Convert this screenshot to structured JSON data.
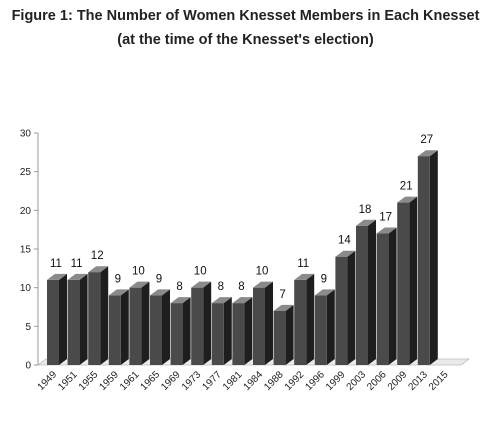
{
  "chart_data": {
    "type": "bar",
    "title": "Figure 1: The Number of Women Knesset Members in Each Knesset",
    "subtitle": "(at the time of the Knesset's election)",
    "xlabel": "",
    "ylabel": "",
    "categories": [
      "1949",
      "1951",
      "1955",
      "1959",
      "1961",
      "1965",
      "1969",
      "1973",
      "1977",
      "1981",
      "1984",
      "1988",
      "1992",
      "1996",
      "1999",
      "2003",
      "2006",
      "2009",
      "2013",
      "2015"
    ],
    "values": [
      11,
      11,
      12,
      9,
      10,
      9,
      8,
      10,
      8,
      8,
      10,
      7,
      11,
      9,
      14,
      18,
      17,
      21,
      27,
      null
    ],
    "data_labels": [
      "11",
      "11",
      "12",
      "9",
      "10",
      "9",
      "8",
      "10",
      "8",
      "8",
      "10",
      "7",
      "11",
      "9",
      "14",
      "18",
      "17",
      "21",
      "27",
      ""
    ],
    "y_ticks": [
      "0",
      "5",
      "10",
      "15",
      "20",
      "25",
      "30"
    ],
    "ylim": [
      0,
      30
    ],
    "grid": false,
    "legend": "none",
    "bar_style": "3d",
    "colors": {
      "bar_front": "#4a4a4a",
      "bar_side": "#1e1e1e",
      "bar_top": "#8a8a8a",
      "floor": "#eaeaea",
      "axis": "#9a9a9a"
    }
  }
}
